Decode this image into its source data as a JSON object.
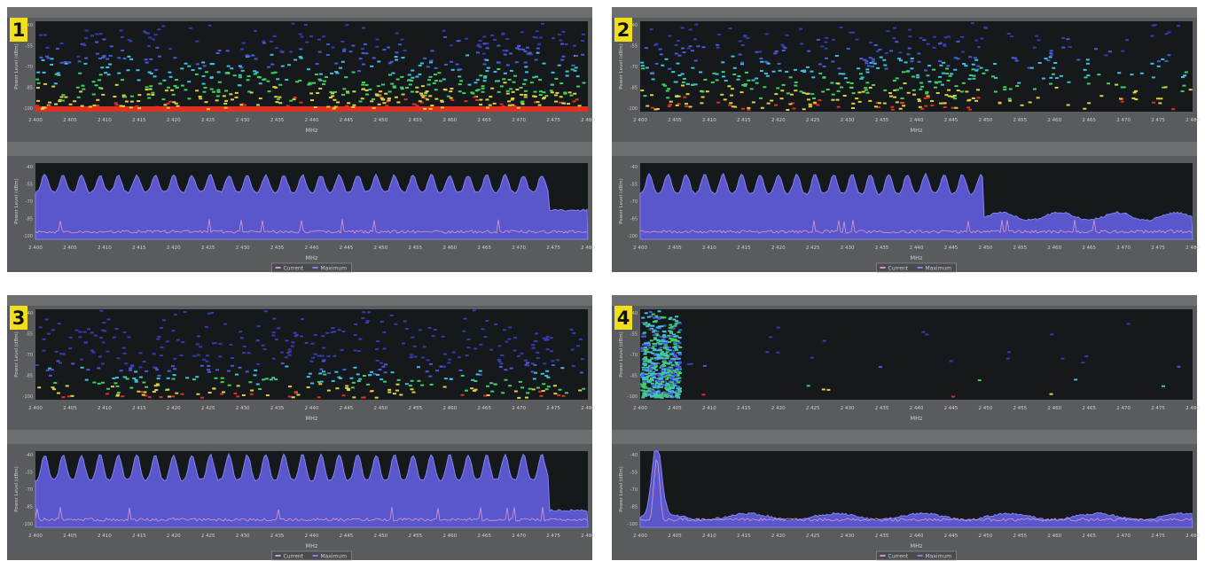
{
  "panels": [
    {
      "number": "1"
    },
    {
      "number": "2"
    },
    {
      "number": "3"
    },
    {
      "number": "4"
    }
  ],
  "x_axis_label": "MHz",
  "y_axis_label": "Power Level (dBm)",
  "frequency_ticks": [
    "2 400",
    "2 405",
    "2 410",
    "2 415",
    "2 420",
    "2 425",
    "2 430",
    "2 435",
    "2 440",
    "2 445",
    "2 450",
    "2 455",
    "2 460",
    "2 465",
    "2 470",
    "2 475",
    "2 480"
  ],
  "power_ticks": [
    "-40",
    "-55",
    "-70",
    "-85",
    "-100"
  ],
  "legend": {
    "current": "Current",
    "maximum": "Maximum"
  }
}
